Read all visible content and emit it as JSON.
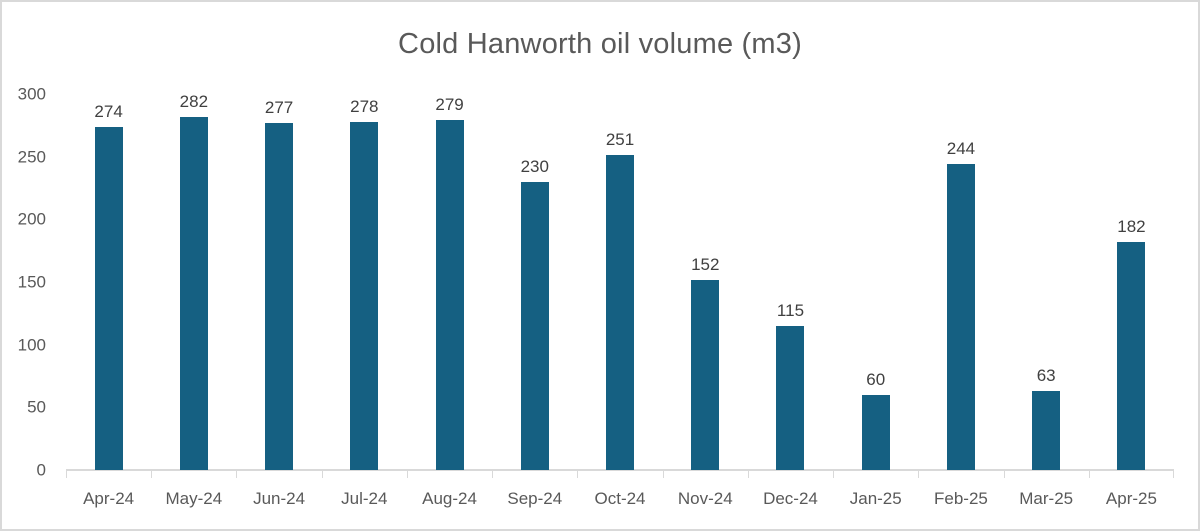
{
  "window": {
    "background": "#ffffff",
    "border_color": "#d9d9d9"
  },
  "chart_data": {
    "type": "bar",
    "title": "Cold Hanworth oil volume (m3)",
    "categories": [
      "Apr-24",
      "May-24",
      "Jun-24",
      "Jul-24",
      "Aug-24",
      "Sep-24",
      "Oct-24",
      "Nov-24",
      "Dec-24",
      "Jan-25",
      "Feb-25",
      "Mar-25",
      "Apr-25"
    ],
    "values": [
      274,
      282,
      277,
      278,
      279,
      230,
      251,
      152,
      115,
      60,
      244,
      63,
      182
    ],
    "xlabel": "",
    "ylabel": "",
    "ylim": [
      0,
      300
    ],
    "yticks": [
      0,
      50,
      100,
      150,
      200,
      250,
      300
    ],
    "grid": false,
    "legend": false,
    "data_labels_shown": true,
    "bar_color": "#156082",
    "title_color": "#595959",
    "axis_label_color": "#595959",
    "value_label_color": "#404040",
    "axis_line_color": "#d9d9d9"
  }
}
